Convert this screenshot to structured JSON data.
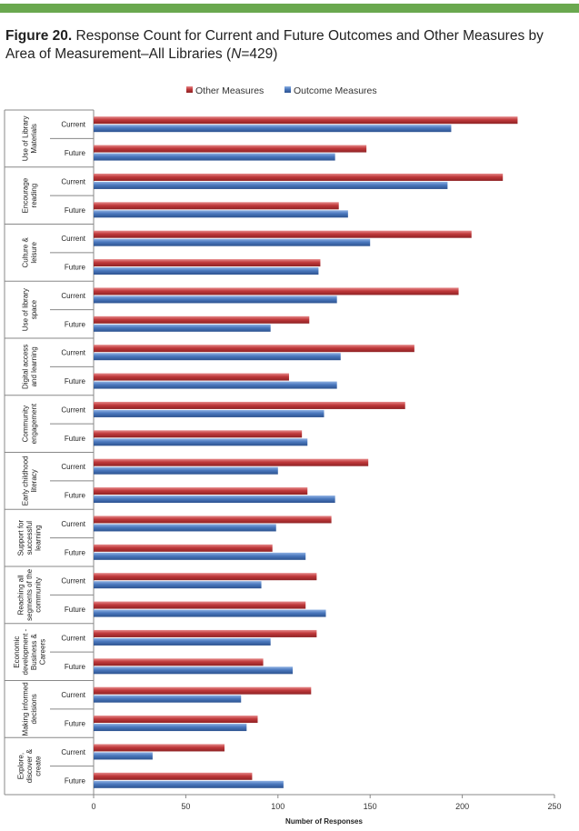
{
  "figure": {
    "number": "Figure 20.",
    "title_pre": "Response Count for Current and Future Outcomes and Other Measures by Area of Measurement–All Libraries (",
    "n_label": "N",
    "title_post": "=429)"
  },
  "colors": {
    "top_bar": "#6aa84f",
    "other_measures": "#c0393b",
    "outcome_measures": "#4a78bd"
  },
  "chart_data": {
    "type": "bar",
    "orientation": "horizontal",
    "xlabel": "Number of Responses",
    "xlim": [
      0,
      250
    ],
    "xticks": [
      "0",
      "50",
      "100",
      "150",
      "200",
      "250"
    ],
    "grid": false,
    "legend_position": "top",
    "legend": [
      "Other Measures",
      "Outcome Measures"
    ],
    "groups": [
      {
        "label": "Use of Library Materials",
        "rows": [
          {
            "label": "Current",
            "other": 230,
            "outcome": 194
          },
          {
            "label": "Future",
            "other": 148,
            "outcome": 131
          }
        ]
      },
      {
        "label": "Encourage reading",
        "rows": [
          {
            "label": "Current",
            "other": 222,
            "outcome": 192
          },
          {
            "label": "Future",
            "other": 133,
            "outcome": 138
          }
        ]
      },
      {
        "label": "Culture & leisure",
        "rows": [
          {
            "label": "Current",
            "other": 205,
            "outcome": 150
          },
          {
            "label": "Future",
            "other": 123,
            "outcome": 122
          }
        ]
      },
      {
        "label": "Use of library space",
        "rows": [
          {
            "label": "Current",
            "other": 198,
            "outcome": 132
          },
          {
            "label": "Future",
            "other": 117,
            "outcome": 96
          }
        ]
      },
      {
        "label": "Digital access and learning",
        "rows": [
          {
            "label": "Current",
            "other": 174,
            "outcome": 134
          },
          {
            "label": "Future",
            "other": 106,
            "outcome": 132
          }
        ]
      },
      {
        "label": "Community engagement",
        "rows": [
          {
            "label": "Current",
            "other": 169,
            "outcome": 125
          },
          {
            "label": "Future",
            "other": 113,
            "outcome": 116
          }
        ]
      },
      {
        "label": "Early childhood literacy",
        "rows": [
          {
            "label": "Current",
            "other": 149,
            "outcome": 100
          },
          {
            "label": "Future",
            "other": 116,
            "outcome": 131
          }
        ]
      },
      {
        "label": "Support for successful learning",
        "rows": [
          {
            "label": "Current",
            "other": 129,
            "outcome": 99
          },
          {
            "label": "Future",
            "other": 97,
            "outcome": 115
          }
        ]
      },
      {
        "label": "Reaching all segments of the community",
        "rows": [
          {
            "label": "Current",
            "other": 121,
            "outcome": 91
          },
          {
            "label": "Future",
            "other": 115,
            "outcome": 126
          }
        ]
      },
      {
        "label": "Economic development - Business & Careers",
        "rows": [
          {
            "label": "Current",
            "other": 121,
            "outcome": 96
          },
          {
            "label": "Future",
            "other": 92,
            "outcome": 108
          }
        ]
      },
      {
        "label": "Making informed decisions",
        "rows": [
          {
            "label": "Current",
            "other": 118,
            "outcome": 80
          },
          {
            "label": "Future",
            "other": 89,
            "outcome": 83
          }
        ]
      },
      {
        "label": "Explore, discover & create",
        "rows": [
          {
            "label": "Current",
            "other": 71,
            "outcome": 32
          },
          {
            "label": "Future",
            "other": 86,
            "outcome": 103
          }
        ]
      }
    ]
  }
}
